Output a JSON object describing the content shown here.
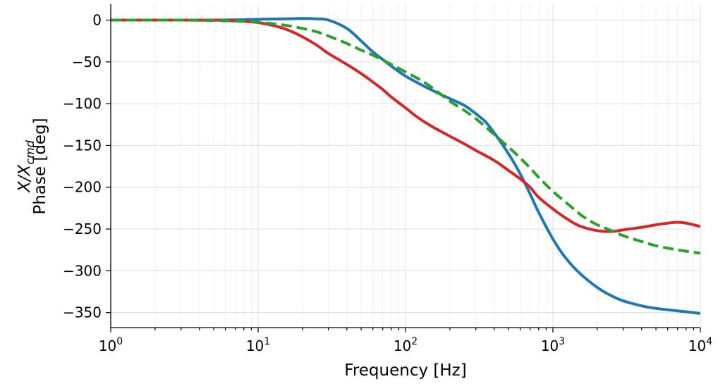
{
  "chart_data": {
    "type": "line",
    "xlabel": "Frequency [Hz]",
    "ylabel_line1": "X/X",
    "ylabel_subscript": "cmd",
    "ylabel_line2": "Phase [deg]",
    "xscale": "log",
    "xlim": [
      1,
      10000
    ],
    "ylim": [
      -368,
      19
    ],
    "grid": true,
    "x_ticks": [
      {
        "base": "10",
        "exp": "0",
        "value": 1
      },
      {
        "base": "10",
        "exp": "1",
        "value": 10
      },
      {
        "base": "10",
        "exp": "2",
        "value": 100
      },
      {
        "base": "10",
        "exp": "3",
        "value": 1000
      },
      {
        "base": "10",
        "exp": "4",
        "value": 10000
      }
    ],
    "y_ticks": [
      {
        "label": "0",
        "value": 0
      },
      {
        "label": "−50",
        "value": -50
      },
      {
        "label": "−100",
        "value": -100
      },
      {
        "label": "−150",
        "value": -150
      },
      {
        "label": "−200",
        "value": -200
      },
      {
        "label": "−250",
        "value": -250
      },
      {
        "label": "−300",
        "value": -300
      },
      {
        "label": "−350",
        "value": -350
      }
    ],
    "series": [
      {
        "color": "#1f77b4",
        "dash": "solid",
        "points": [
          [
            1,
            0
          ],
          [
            3,
            0
          ],
          [
            5,
            0
          ],
          [
            8,
            0.5
          ],
          [
            10,
            1
          ],
          [
            15,
            1.5
          ],
          [
            20,
            2
          ],
          [
            25,
            1.5
          ],
          [
            30,
            0
          ],
          [
            40,
            -10
          ],
          [
            50,
            -25
          ],
          [
            60,
            -38
          ],
          [
            70,
            -47
          ],
          [
            80,
            -55
          ],
          [
            100,
            -67
          ],
          [
            130,
            -78
          ],
          [
            160,
            -86
          ],
          [
            200,
            -94
          ],
          [
            250,
            -102
          ],
          [
            300,
            -112
          ],
          [
            350,
            -122
          ],
          [
            400,
            -135
          ],
          [
            500,
            -160
          ],
          [
            600,
            -184
          ],
          [
            700,
            -208
          ],
          [
            800,
            -230
          ],
          [
            1000,
            -262
          ],
          [
            1200,
            -283
          ],
          [
            1500,
            -302
          ],
          [
            2000,
            -320
          ],
          [
            2500,
            -330
          ],
          [
            3000,
            -336
          ],
          [
            4000,
            -342
          ],
          [
            5000,
            -345
          ],
          [
            7000,
            -348
          ],
          [
            10000,
            -351
          ]
        ]
      },
      {
        "color": "#d62728",
        "dash": "solid",
        "points": [
          [
            1,
            0
          ],
          [
            3,
            0
          ],
          [
            5,
            0
          ],
          [
            7,
            -1
          ],
          [
            10,
            -3
          ],
          [
            13,
            -7
          ],
          [
            16,
            -12
          ],
          [
            20,
            -20
          ],
          [
            25,
            -30
          ],
          [
            30,
            -40
          ],
          [
            40,
            -53
          ],
          [
            50,
            -64
          ],
          [
            60,
            -74
          ],
          [
            70,
            -83
          ],
          [
            80,
            -92
          ],
          [
            100,
            -105
          ],
          [
            120,
            -116
          ],
          [
            150,
            -127
          ],
          [
            200,
            -139
          ],
          [
            250,
            -148
          ],
          [
            300,
            -156
          ],
          [
            400,
            -168
          ],
          [
            500,
            -180
          ],
          [
            600,
            -190
          ],
          [
            700,
            -200
          ],
          [
            800,
            -212
          ],
          [
            1000,
            -226
          ],
          [
            1200,
            -236
          ],
          [
            1500,
            -246
          ],
          [
            2000,
            -252
          ],
          [
            2500,
            -253
          ],
          [
            3000,
            -251
          ],
          [
            4000,
            -248
          ],
          [
            5000,
            -245
          ],
          [
            6000,
            -243
          ],
          [
            7000,
            -242
          ],
          [
            8000,
            -243
          ],
          [
            9000,
            -245
          ],
          [
            10000,
            -247
          ]
        ]
      },
      {
        "color": "#2ca02c",
        "dash": "dashed",
        "points": [
          [
            1,
            0
          ],
          [
            3,
            0
          ],
          [
            5,
            -0.5
          ],
          [
            8,
            -1.5
          ],
          [
            10,
            -2.5
          ],
          [
            15,
            -6
          ],
          [
            20,
            -10
          ],
          [
            25,
            -14
          ],
          [
            30,
            -19
          ],
          [
            40,
            -28
          ],
          [
            50,
            -36
          ],
          [
            60,
            -42
          ],
          [
            80,
            -53
          ],
          [
            100,
            -62
          ],
          [
            130,
            -73
          ],
          [
            160,
            -84
          ],
          [
            200,
            -97
          ],
          [
            250,
            -108
          ],
          [
            300,
            -118
          ],
          [
            350,
            -128
          ],
          [
            400,
            -137
          ],
          [
            500,
            -152
          ],
          [
            600,
            -165
          ],
          [
            700,
            -177
          ],
          [
            800,
            -188
          ],
          [
            1000,
            -205
          ],
          [
            1300,
            -222
          ],
          [
            1600,
            -235
          ],
          [
            2000,
            -245
          ],
          [
            2500,
            -252
          ],
          [
            3000,
            -258
          ],
          [
            4000,
            -265
          ],
          [
            5000,
            -270
          ],
          [
            7000,
            -275
          ],
          [
            10000,
            -279
          ]
        ]
      }
    ]
  }
}
